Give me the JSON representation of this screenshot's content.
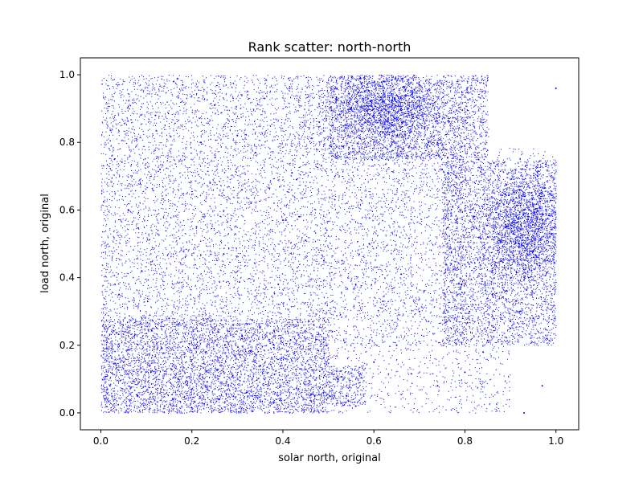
{
  "chart_data": {
    "type": "scatter",
    "title": "Rank scatter: north-north",
    "xlabel": "solar north, original",
    "ylabel": "load north, original",
    "xlim": [
      -0.045,
      1.05
    ],
    "ylim": [
      -0.05,
      1.05
    ],
    "x_ticks": [
      0.0,
      0.2,
      0.4,
      0.6,
      0.8,
      1.0
    ],
    "x_tick_labels": [
      "0.0",
      "0.2",
      "0.4",
      "0.6",
      "0.8",
      "1.0"
    ],
    "y_ticks": [
      0.0,
      0.2,
      0.4,
      0.6,
      0.8,
      1.0
    ],
    "y_tick_labels": [
      "0.0",
      "0.2",
      "0.4",
      "0.6",
      "0.8",
      "1.0"
    ],
    "grid": false,
    "marker_color": "#0000ff",
    "series": [
      {
        "x": [
          0.02,
          0.05,
          0.08,
          0.11,
          0.14,
          0.17,
          0.2,
          0.23,
          0.26,
          0.29,
          0.32,
          0.35,
          0.38,
          0.41,
          0.44,
          0.47,
          0.04,
          0.09,
          0.15,
          0.21,
          0.27,
          0.33,
          0.39,
          0.45,
          0.03,
          0.12,
          0.18,
          0.24,
          0.3,
          0.36,
          0.42,
          0.48,
          0.58,
          0.6,
          0.62,
          0.64,
          0.66,
          0.68,
          0.7,
          0.72,
          0.55,
          0.57,
          0.63,
          0.67,
          0.75,
          0.78,
          0.82,
          0.85,
          0.87,
          0.89,
          0.91,
          0.93,
          0.95,
          0.97,
          0.99,
          0.88,
          0.92,
          0.96,
          0.86,
          0.94,
          0.9,
          0.98,
          0.52,
          0.54,
          0.56,
          0.6,
          0.65,
          0.7,
          0.74,
          0.8,
          0.84,
          0.93,
          0.97,
          1.0,
          0.92,
          0.95,
          0.53,
          0.56,
          0.59,
          0.62,
          0.66,
          0.71,
          0.77,
          0.81,
          0.86,
          0.9,
          0.06,
          0.13,
          0.22,
          0.31,
          0.4,
          0.49,
          0.16,
          0.25,
          0.34,
          0.43
        ],
        "y": [
          0.08,
          0.15,
          0.05,
          0.12,
          0.02,
          0.1,
          0.07,
          0.18,
          0.04,
          0.11,
          0.06,
          0.14,
          0.03,
          0.09,
          0.13,
          0.05,
          0.35,
          0.42,
          0.28,
          0.55,
          0.47,
          0.62,
          0.38,
          0.51,
          0.75,
          0.88,
          0.97,
          0.68,
          0.82,
          0.93,
          0.71,
          0.86,
          0.95,
          0.88,
          0.92,
          0.85,
          0.9,
          0.83,
          0.97,
          0.8,
          0.9,
          0.99,
          0.78,
          0.94,
          0.72,
          0.65,
          0.58,
          0.52,
          0.62,
          0.55,
          0.5,
          0.6,
          0.48,
          0.57,
          0.53,
          0.45,
          0.66,
          0.7,
          0.42,
          0.4,
          0.25,
          0.22,
          0.1,
          0.05,
          0.02,
          0.15,
          0.2,
          0.3,
          0.08,
          0.12,
          0.18,
          0.0,
          0.08,
          0.96,
          0.3,
          0.28,
          0.45,
          0.38,
          0.5,
          0.33,
          0.41,
          0.36,
          0.44,
          0.3,
          0.35,
          0.27,
          0.6,
          0.72,
          0.8,
          0.66,
          0.57,
          0.45,
          0.98,
          0.91,
          0.77,
          0.69
        ]
      }
    ]
  }
}
